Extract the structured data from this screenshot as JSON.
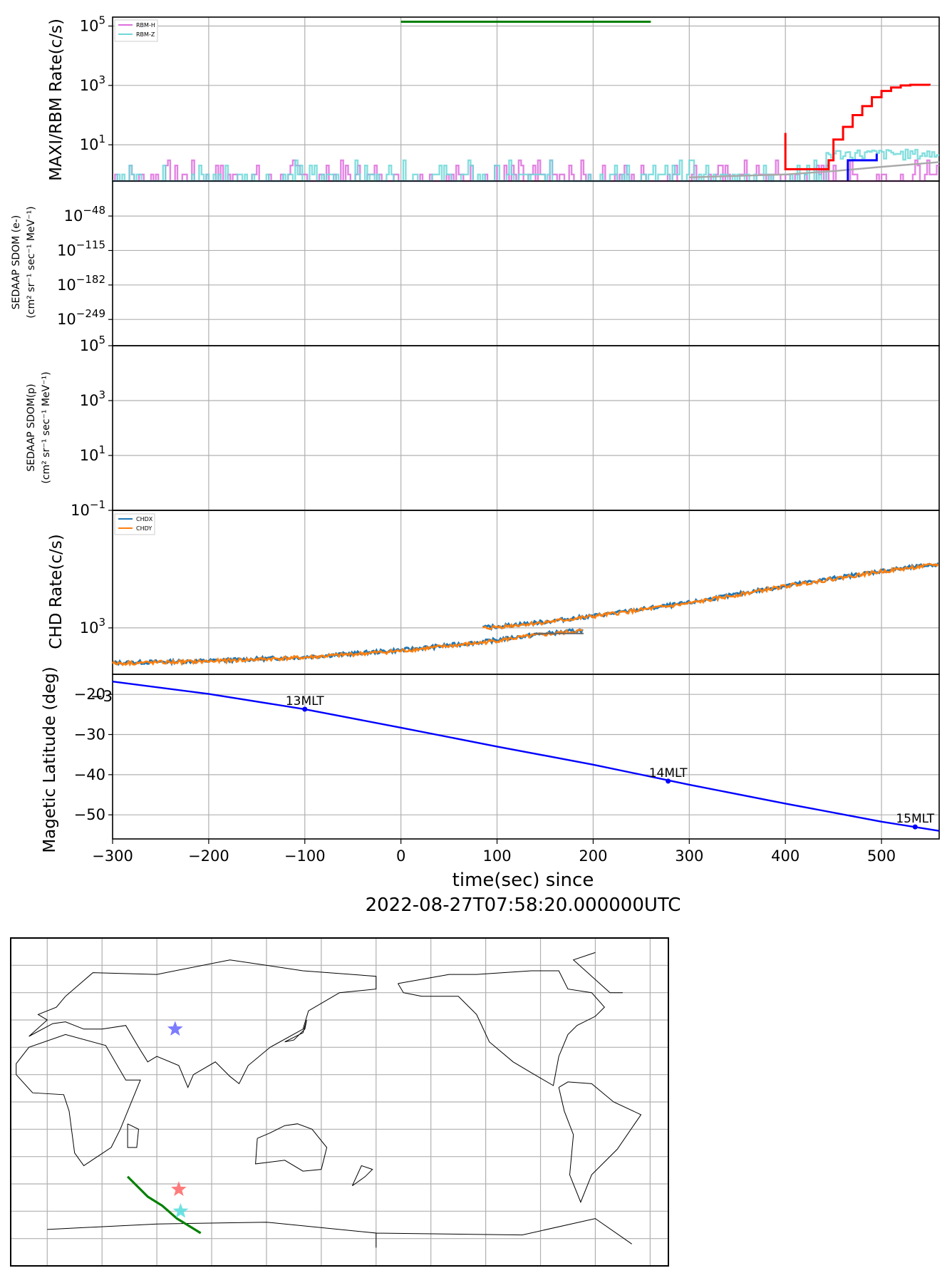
{
  "colors": {
    "rbm_h": "#dd70dd",
    "rbm_z": "#70d8d8",
    "gsc_hit": "#ff0000",
    "gsc_low": "#0000ff",
    "background_model": "#a9a9a9",
    "exposure_bar": "#008000",
    "chdx": "#1f77b4",
    "chdy": "#ff7f0e",
    "maglat": "#0000ff",
    "map_track": "#008000",
    "star_blue": "#6666ff",
    "star_red": "#ff6666",
    "star_cyan": "#55dddd"
  },
  "figure": {
    "xlabel": "time(sec) since",
    "xlabel_epoch": "2022-08-27T07:58:20.000000UTC",
    "xticks": [
      -300,
      -200,
      -100,
      0,
      100,
      200,
      300,
      400,
      500
    ],
    "xticklabels": [
      "−300",
      "−200",
      "−100",
      "0",
      "100",
      "200",
      "300",
      "400",
      "500"
    ],
    "xlim": [
      -300,
      560
    ]
  },
  "chart_data": [
    {
      "type": "line",
      "ylabel": "MAXI/RBM Rate(c/s)",
      "yscale": "log",
      "ylim": [
        0.6,
        200000
      ],
      "yticks": [
        10,
        1000,
        100000
      ],
      "ytick_bases": [
        "10",
        "10",
        "10"
      ],
      "ytick_exps": [
        "1",
        "3",
        "5"
      ],
      "grid": true,
      "legend_position": "top-left",
      "legend": [
        "RBM-H",
        "RBM-Z"
      ],
      "exposure_bar": {
        "x": [
          0,
          260
        ],
        "y": 140000
      },
      "series": [
        {
          "name": "RBM-H",
          "values": "noisy counts ~1-3 c/s across full range"
        },
        {
          "name": "RBM-Z",
          "values": "noisy counts ~1-3 c/s, rising to ~5 c/s after 450 s"
        }
      ],
      "gsc_curve": {
        "x": [
          400,
          400,
          401,
          440,
          445,
          450,
          460,
          470,
          480,
          490,
          500,
          510,
          520,
          530,
          540,
          550
        ],
        "y": [
          25,
          1.5,
          1.5,
          1.5,
          3,
          15,
          40,
          100,
          200,
          400,
          650,
          850,
          1000,
          1050,
          1050,
          1000
        ]
      },
      "gsc_low_curve": {
        "x": [
          465,
          465,
          495,
          495
        ],
        "y": [
          0.5,
          3,
          3,
          5
        ]
      },
      "background_curve": {
        "x": [
          300,
          400,
          450,
          500,
          560
        ],
        "y": [
          0.8,
          1.0,
          1.3,
          1.8,
          2.6
        ]
      }
    },
    {
      "type": "line",
      "ylabel_line1": "SEDAAP SDOM (e-)",
      "ylabel_line2": "(cm² sr⁻¹ sec⁻¹ MeV⁻¹)",
      "yscale": "log",
      "ylim": [
        -300,
        20
      ],
      "yticks": [
        -48,
        -115,
        -182,
        -249
      ],
      "ytick_bases": [
        "10",
        "10",
        "10",
        "10"
      ],
      "ytick_exps": [
        "−48",
        "−115",
        "−182",
        "−249"
      ],
      "grid": true,
      "series": []
    },
    {
      "type": "line",
      "ylabel_line1": "SEDAAP SDOM(p)",
      "ylabel_line2": "(cm² sr⁻¹ sec⁻¹ MeV⁻¹)",
      "yscale": "log",
      "ylim": [
        0.1,
        100000
      ],
      "yticks": [
        0.1,
        10,
        1000,
        100000
      ],
      "ytick_bases": [
        "10",
        "10",
        "10",
        "10"
      ],
      "ytick_exps": [
        "−1",
        "1",
        "3",
        "5"
      ],
      "grid": true,
      "series": []
    },
    {
      "type": "line",
      "ylabel": "CHD Rate(c/s)",
      "yscale": "log",
      "ylim": [
        420,
        9000
      ],
      "yticks": [
        1000
      ],
      "ytick_bases": [
        "10"
      ],
      "ytick_exps": [
        "3"
      ],
      "grid": true,
      "legend_position": "top-left",
      "legend": [
        "CHDX",
        "CHDY"
      ],
      "series": [
        {
          "name": "CHDX",
          "x": [
            -300,
            -200,
            -100,
            0,
            85,
            140,
            190
          ],
          "y": [
            520,
            540,
            580,
            660,
            770,
            880,
            960
          ]
        },
        {
          "name": "CHDX",
          "x": [
            85,
            150,
            200,
            300,
            400,
            500,
            560
          ],
          "y": [
            1000,
            1120,
            1250,
            1600,
            2200,
            2900,
            3300
          ]
        },
        {
          "name": "CHDY",
          "x": [
            -300,
            -200,
            -100,
            0,
            85,
            140,
            190
          ],
          "y": [
            515,
            535,
            575,
            650,
            760,
            870,
            950
          ]
        },
        {
          "name": "CHDY",
          "x": [
            85,
            150,
            200,
            300,
            400,
            500,
            560
          ],
          "y": [
            990,
            1110,
            1240,
            1580,
            2180,
            2870,
            3280
          ]
        }
      ],
      "gap_segment": {
        "x": [
          138,
          190
        ],
        "y": 900
      }
    },
    {
      "type": "line",
      "ylabel": "Magetic Latitude  (deg)",
      "ylim": [
        -56,
        -15
      ],
      "yticks": [
        -20,
        -30,
        -40,
        -50
      ],
      "yticklabels": [
        "−20",
        "−30",
        "−40",
        "−50"
      ],
      "top_corner_label": "−3",
      "grid": true,
      "series": [
        {
          "name": "",
          "x": [
            -300,
            -200,
            -100,
            0,
            100,
            200,
            300,
            400,
            500,
            560
          ],
          "y": [
            -16.8,
            -19.9,
            -23.7,
            -28.3,
            -33.0,
            -37.5,
            -42.5,
            -47.2,
            -51.7,
            -54.0
          ]
        }
      ],
      "annotations": [
        {
          "text": "13MLT",
          "x": -100,
          "y": -23.7
        },
        {
          "text": "14MLT",
          "x": 278,
          "y": -41.6
        },
        {
          "text": "15MLT",
          "x": 535,
          "y": -53.0
        }
      ]
    }
  ],
  "map": {
    "type": "world-map",
    "grid": true,
    "track": [
      [
        44,
        -41
      ],
      [
        55,
        -52
      ],
      [
        63,
        -57
      ],
      [
        71,
        -64
      ],
      [
        84,
        -72
      ]
    ],
    "stars": [
      {
        "name": "blue-star",
        "lon": 70,
        "lat": 40
      },
      {
        "name": "red-star",
        "lon": 72,
        "lat": -48
      },
      {
        "name": "cyan-star",
        "lon": 73,
        "lat": -60
      }
    ]
  }
}
